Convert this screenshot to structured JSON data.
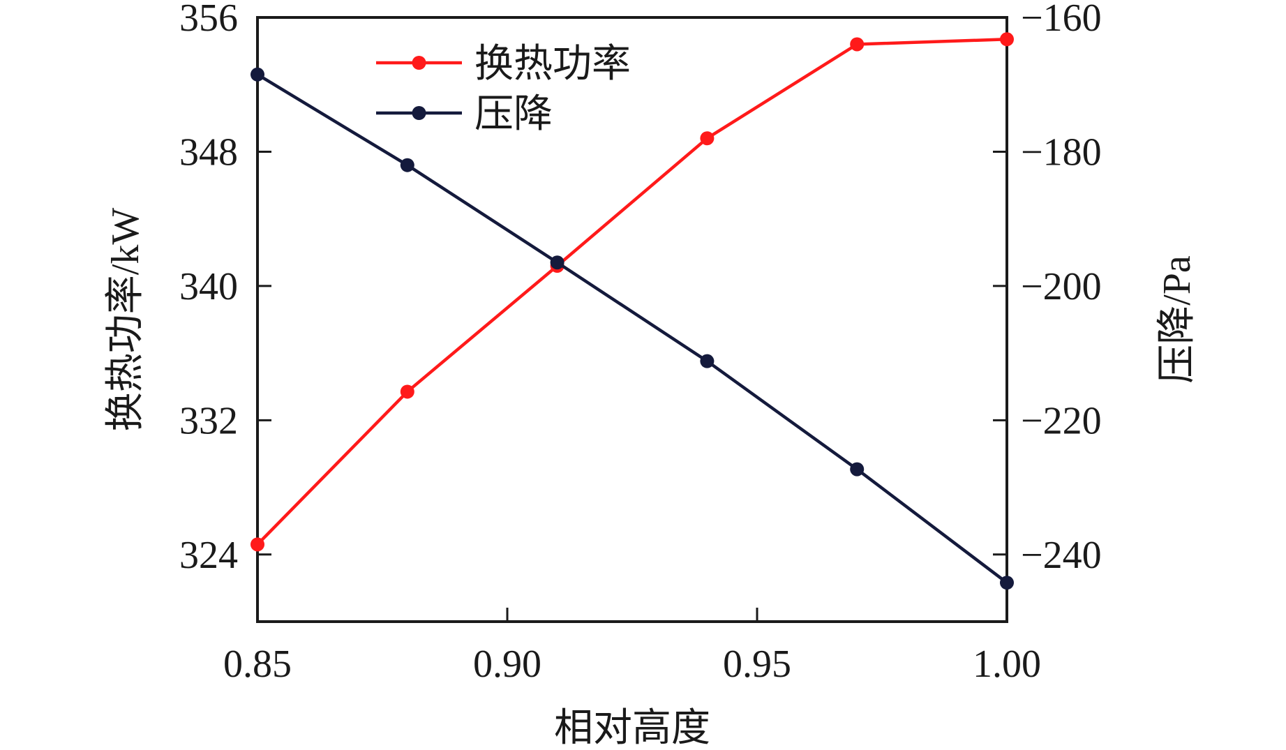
{
  "chart_data": {
    "type": "line",
    "x": [
      0.85,
      0.88,
      0.91,
      0.94,
      0.97,
      1.0
    ],
    "series": [
      {
        "name": "换热功率",
        "axis": "left",
        "color": "#ff1a1a",
        "values": [
          324.6,
          333.7,
          341.2,
          348.8,
          354.4,
          354.7
        ]
      },
      {
        "name": "压降",
        "axis": "right",
        "color": "#141a3c",
        "values": [
          -168.5,
          -182.0,
          -196.5,
          -211.2,
          -227.3,
          -244.2
        ]
      }
    ],
    "xlabel": "相对高度",
    "ylabel_left": "换热功率/kW",
    "ylabel_right": "压降/Pa",
    "xlim": [
      0.85,
      1.0
    ],
    "ylim_left": [
      320,
      356
    ],
    "ylim_right": [
      -250,
      -160
    ],
    "x_ticks": [
      "0.85",
      "0.90",
      "0.95",
      "1.00"
    ],
    "y_left_ticks": [
      "356",
      "348",
      "340",
      "332",
      "324"
    ],
    "y_right_ticks": [
      "−160",
      "−180",
      "−200",
      "−220",
      "−240"
    ],
    "grid": false,
    "legend_position": "top-left"
  }
}
